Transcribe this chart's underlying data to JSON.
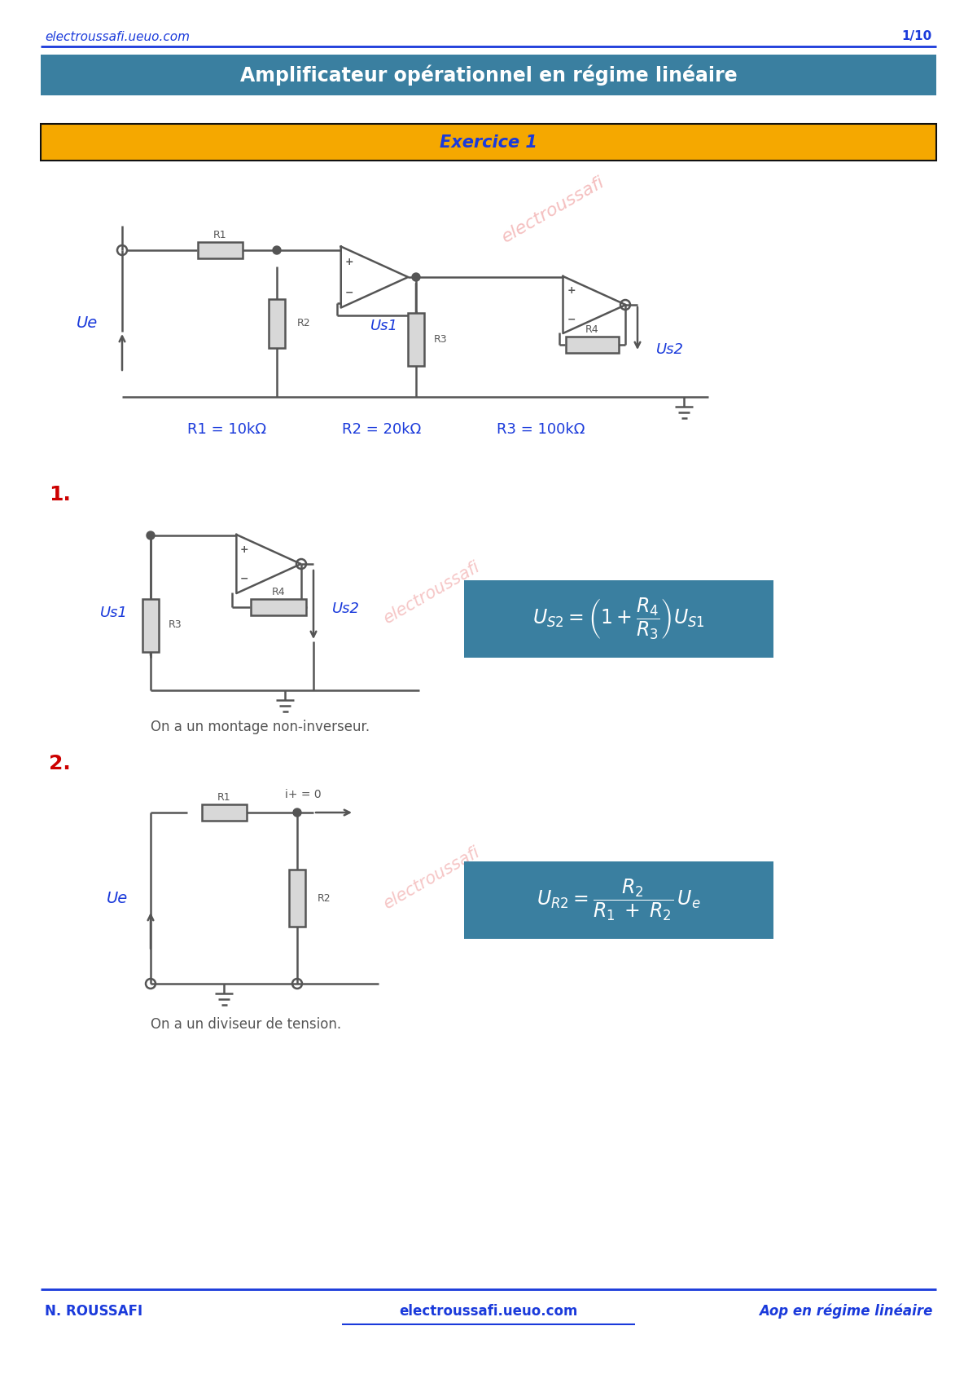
{
  "page_title": "Amplificateur opérationnel en régime linéaire",
  "header_url": "electroussafi.ueuo.com",
  "header_page": "1/10",
  "header_line_color": "#1a3adb",
  "title_bg": "#3a7fa0",
  "title_text_color": "#ffffff",
  "exercice_bg": "#f5a800",
  "exercice_border": "#111111",
  "exercice_text": "Exercice 1",
  "exercice_text_color": "#1a3adb",
  "watermark_color": "#e87070",
  "resistor_values_r1": "R1 = 10kΩ",
  "resistor_values_r2": "R2 = 20kΩ",
  "resistor_values_r3": "R3 = 100kΩ",
  "circuit_color": "#555555",
  "label_color": "#1a3adb",
  "point1_label": "1.",
  "point1_color": "#cc0000",
  "point1_caption": "On a un montage non-inverseur.",
  "formula1_bg": "#3a7fa0",
  "formula1_text_color": "#ffffff",
  "point2_label": "2.",
  "point2_color": "#cc0000",
  "point2_caption": "On a un diviseur de tension.",
  "formula2_bg": "#3a7fa0",
  "formula2_text_color": "#ffffff",
  "footer_line_color": "#1a3adb",
  "footer_left": "N. ROUSSAFI",
  "footer_center": "electroussafi.ueuo.com",
  "footer_right": "Aop en régime linéaire",
  "footer_color": "#1a3adb",
  "bg_color": "#ffffff"
}
